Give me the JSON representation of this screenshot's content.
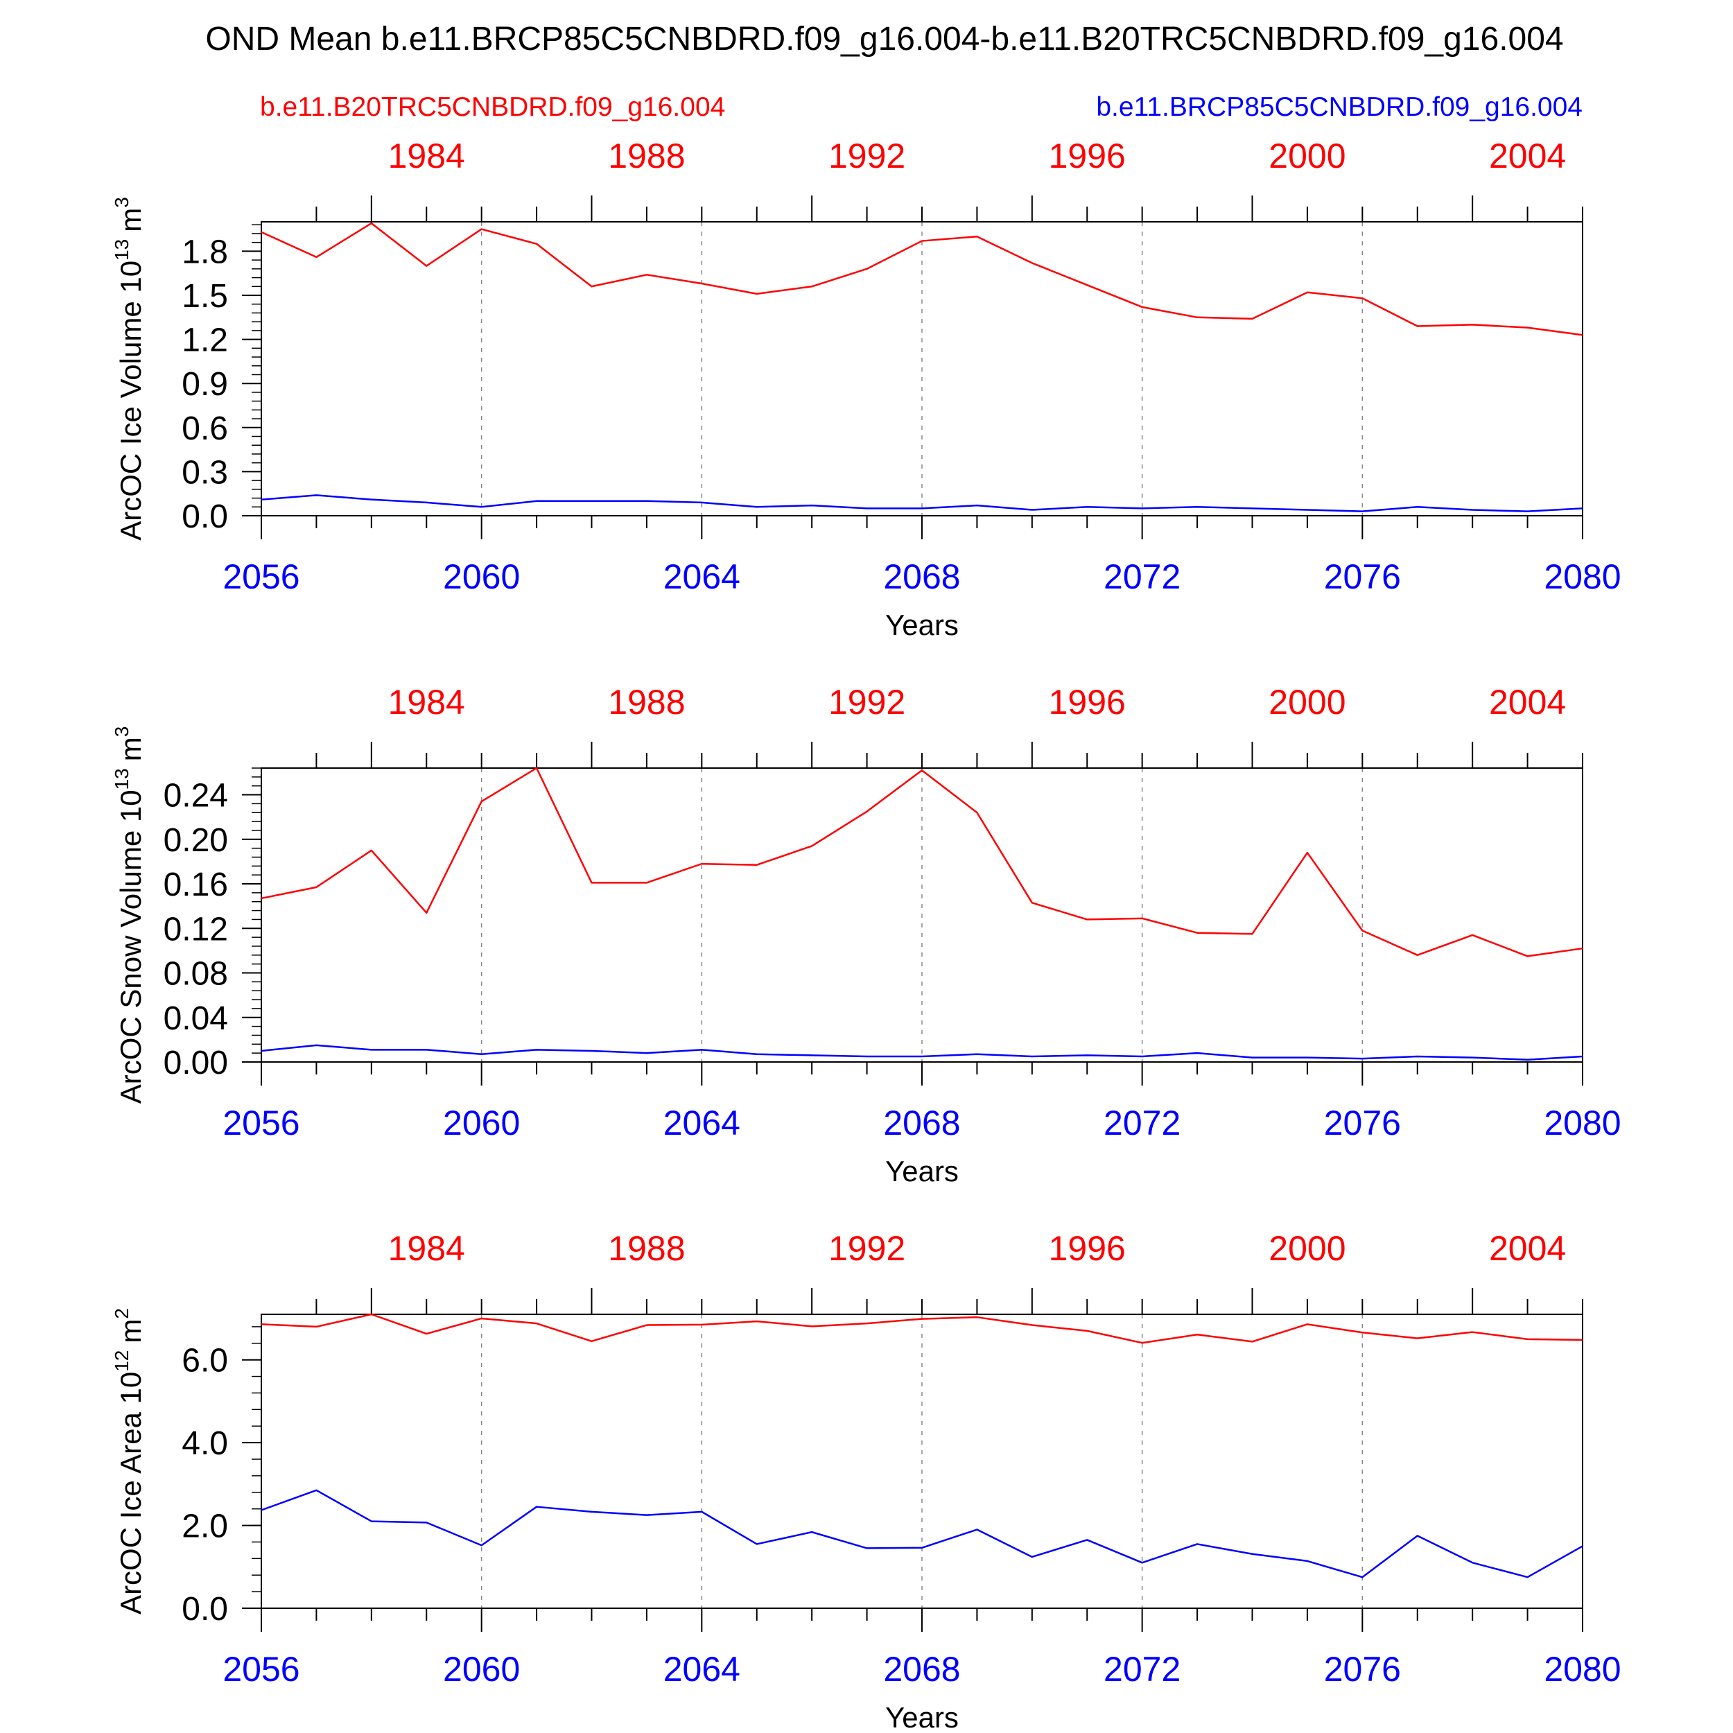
{
  "title": "OND Mean b.e11.BRCP85C5CNBDRD.f09_g16.004-b.e11.B20TRC5CNBDRD.f09_g16.004",
  "legend": {
    "red_label": "b.e11.B20TRC5CNBDRD.f09_g16.004",
    "blue_label": "b.e11.BRCP85C5CNBDRD.f09_g16.004"
  },
  "colors": {
    "red": "#ff0000",
    "blue": "#0000ff",
    "axis": "#000000",
    "grid": "#888888"
  },
  "chart_data": [
    {
      "type": "line",
      "ylabel": "ArcOC Ice Volume 10",
      "ylabel_exp": "13",
      "ylabel_unit": "m",
      "ylabel_unit_exp": "3",
      "xlabel": "Years",
      "ylim": [
        0,
        2.0
      ],
      "yticks": [
        "0.0",
        "0.3",
        "0.6",
        "0.9",
        "1.2",
        "1.5",
        "1.8"
      ],
      "ytick_values": [
        0,
        0.3,
        0.6,
        0.9,
        1.2,
        1.5,
        1.8
      ],
      "y_minor_step": 0.06,
      "x_bottom_ticks": [
        "2056",
        "2060",
        "2064",
        "2068",
        "2072",
        "2076",
        "2080"
      ],
      "x_top_ticks": [
        "1984",
        "1988",
        "1992",
        "1996",
        "2000",
        "2004"
      ],
      "x": [
        2056,
        2057,
        2058,
        2059,
        2060,
        2061,
        2062,
        2063,
        2064,
        2065,
        2066,
        2067,
        2068,
        2069,
        2070,
        2071,
        2072,
        2073,
        2074,
        2075,
        2076,
        2077,
        2078,
        2079,
        2080
      ],
      "series": [
        {
          "color": "red",
          "values": [
            1.93,
            1.76,
            1.99,
            1.7,
            1.95,
            1.85,
            1.56,
            1.64,
            1.58,
            1.51,
            1.56,
            1.68,
            1.87,
            1.9,
            1.72,
            1.57,
            1.42,
            1.35,
            1.34,
            1.52,
            1.48,
            1.29,
            1.3,
            1.28,
            1.23
          ]
        },
        {
          "color": "blue",
          "values": [
            0.11,
            0.14,
            0.11,
            0.09,
            0.06,
            0.1,
            0.1,
            0.1,
            0.09,
            0.06,
            0.07,
            0.05,
            0.05,
            0.07,
            0.04,
            0.06,
            0.05,
            0.06,
            0.05,
            0.04,
            0.03,
            0.06,
            0.04,
            0.03,
            0.05
          ]
        }
      ]
    },
    {
      "type": "line",
      "ylabel": "ArcOC Snow Volume 10",
      "ylabel_exp": "13",
      "ylabel_unit": "m",
      "ylabel_unit_exp": "3",
      "xlabel": "Years",
      "ylim": [
        0,
        0.264
      ],
      "yticks": [
        "0.00",
        "0.04",
        "0.08",
        "0.12",
        "0.16",
        "0.20",
        "0.24"
      ],
      "ytick_values": [
        0,
        0.04,
        0.08,
        0.12,
        0.16,
        0.2,
        0.24
      ],
      "y_minor_step": 0.008,
      "x_bottom_ticks": [
        "2056",
        "2060",
        "2064",
        "2068",
        "2072",
        "2076",
        "2080"
      ],
      "x_top_ticks": [
        "1984",
        "1988",
        "1992",
        "1996",
        "2000",
        "2004"
      ],
      "x": [
        2056,
        2057,
        2058,
        2059,
        2060,
        2061,
        2062,
        2063,
        2064,
        2065,
        2066,
        2067,
        2068,
        2069,
        2070,
        2071,
        2072,
        2073,
        2074,
        2075,
        2076,
        2077,
        2078,
        2079,
        2080
      ],
      "series": [
        {
          "color": "red",
          "values": [
            0.147,
            0.157,
            0.19,
            0.134,
            0.234,
            0.264,
            0.161,
            0.161,
            0.178,
            0.177,
            0.194,
            0.225,
            0.262,
            0.224,
            0.143,
            0.128,
            0.129,
            0.116,
            0.115,
            0.188,
            0.118,
            0.096,
            0.114,
            0.095,
            0.102
          ]
        },
        {
          "color": "blue",
          "values": [
            0.01,
            0.015,
            0.011,
            0.011,
            0.007,
            0.011,
            0.01,
            0.008,
            0.011,
            0.007,
            0.006,
            0.005,
            0.005,
            0.007,
            0.005,
            0.006,
            0.005,
            0.008,
            0.004,
            0.004,
            0.003,
            0.005,
            0.004,
            0.002,
            0.005
          ]
        }
      ]
    },
    {
      "type": "line",
      "ylabel": "ArcOC Ice Area 10",
      "ylabel_exp": "12",
      "ylabel_unit": "m",
      "ylabel_unit_exp": "2",
      "xlabel": "Years",
      "ylim": [
        0,
        7.1
      ],
      "yticks": [
        "0.0",
        "2.0",
        "4.0",
        "6.0"
      ],
      "ytick_values": [
        0,
        2.0,
        4.0,
        6.0
      ],
      "y_minor_step": 0.4,
      "x_bottom_ticks": [
        "2056",
        "2060",
        "2064",
        "2068",
        "2072",
        "2076",
        "2080"
      ],
      "x_top_ticks": [
        "1984",
        "1988",
        "1992",
        "1996",
        "2000",
        "2004"
      ],
      "x": [
        2056,
        2057,
        2058,
        2059,
        2060,
        2061,
        2062,
        2063,
        2064,
        2065,
        2066,
        2067,
        2068,
        2069,
        2070,
        2071,
        2072,
        2073,
        2074,
        2075,
        2076,
        2077,
        2078,
        2079,
        2080
      ],
      "series": [
        {
          "color": "red",
          "values": [
            6.86,
            6.8,
            7.1,
            6.63,
            7.0,
            6.88,
            6.45,
            6.84,
            6.85,
            6.93,
            6.81,
            6.88,
            6.99,
            7.03,
            6.84,
            6.7,
            6.41,
            6.61,
            6.44,
            6.86,
            6.66,
            6.52,
            6.67,
            6.5,
            6.48
          ]
        },
        {
          "color": "blue",
          "values": [
            2.37,
            2.85,
            2.1,
            2.07,
            1.52,
            2.45,
            2.33,
            2.25,
            2.33,
            1.55,
            1.84,
            1.45,
            1.46,
            1.9,
            1.24,
            1.65,
            1.1,
            1.55,
            1.31,
            1.14,
            0.75,
            1.75,
            1.1,
            0.75,
            1.5
          ]
        }
      ]
    }
  ]
}
